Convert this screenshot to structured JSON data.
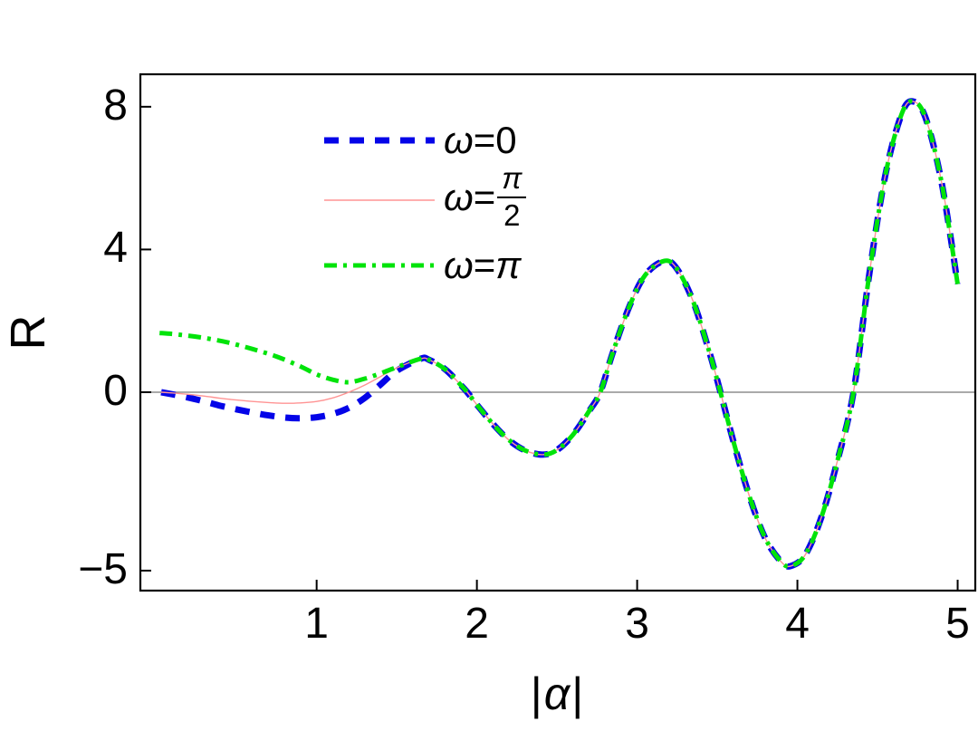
{
  "chart_data": {
    "type": "line",
    "title": "",
    "xlabel": "|α|",
    "xlabel_parts": {
      "left_bar": "|",
      "symbol": "α",
      "right_bar": "|"
    },
    "ylabel": "R",
    "xlim": [
      -0.1,
      5.11
    ],
    "ylim": [
      -5.56,
      8.91
    ],
    "x_ticks": [
      {
        "value": 1,
        "label": "1"
      },
      {
        "value": 2,
        "label": "2"
      },
      {
        "value": 3,
        "label": "3"
      },
      {
        "value": 4,
        "label": "4"
      },
      {
        "value": 5,
        "label": "5"
      }
    ],
    "y_ticks": [
      {
        "value": 8,
        "label": "8"
      },
      {
        "value": 4,
        "label": "4"
      },
      {
        "value": 0,
        "label": "0"
      },
      {
        "value": -5,
        "label": "−5"
      }
    ],
    "grid": "none",
    "zero_line": true,
    "zero_line_color": "#787878",
    "frame_color": "#000000",
    "background": "#ffffff",
    "legend_position": "top-left-inside",
    "series": [
      {
        "name": "ω=0",
        "color": "#0404e8",
        "style": "dashed",
        "stroke_width": 7,
        "dash": [
          16,
          12
        ],
        "points": [
          [
            0.03,
            0
          ],
          [
            0.1,
            -0.06
          ],
          [
            0.2,
            -0.15
          ],
          [
            0.3,
            -0.26
          ],
          [
            0.4,
            -0.38
          ],
          [
            0.5,
            -0.48
          ],
          [
            0.6,
            -0.57
          ],
          [
            0.7,
            -0.65
          ],
          [
            0.8,
            -0.71
          ],
          [
            0.9,
            -0.73
          ],
          [
            1,
            -0.7
          ],
          [
            1.1,
            -0.61
          ],
          [
            1.2,
            -0.44
          ],
          [
            1.3,
            -0.16
          ],
          [
            1.4,
            0.22
          ],
          [
            1.5,
            0.6
          ],
          [
            1.65,
            0.94
          ],
          [
            1.7,
            0.91
          ],
          [
            1.8,
            0.65
          ],
          [
            1.9,
            0.2
          ],
          [
            1.94,
            0
          ],
          [
            2,
            -0.35
          ],
          [
            2.1,
            -0.89
          ],
          [
            2.2,
            -1.34
          ],
          [
            2.3,
            -1.63
          ],
          [
            2.41,
            -1.75
          ],
          [
            2.5,
            -1.62
          ],
          [
            2.6,
            -1.19
          ],
          [
            2.7,
            -0.53
          ],
          [
            2.77,
            0
          ],
          [
            2.85,
            1.14
          ],
          [
            2.95,
            2.39
          ],
          [
            3.05,
            3.28
          ],
          [
            3.17,
            3.68
          ],
          [
            3.25,
            3.45
          ],
          [
            3.35,
            2.54
          ],
          [
            3.45,
            1.14
          ],
          [
            3.52,
            0
          ],
          [
            3.6,
            -1.37
          ],
          [
            3.7,
            -2.91
          ],
          [
            3.8,
            -4.1
          ],
          [
            3.9,
            -4.76
          ],
          [
            3.96,
            -4.87
          ],
          [
            4.05,
            -4.55
          ],
          [
            4.15,
            -3.5
          ],
          [
            4.25,
            -1.92
          ],
          [
            4.35,
            0
          ],
          [
            4.45,
            3.35
          ],
          [
            4.55,
            6.11
          ],
          [
            4.65,
            7.79
          ],
          [
            4.72,
            8.15
          ],
          [
            4.8,
            7.69
          ],
          [
            4.9,
            5.88
          ],
          [
            5,
            3.03
          ]
        ]
      },
      {
        "name": "ω=π/2",
        "color": "#ff9494",
        "style": "solid",
        "stroke_width": 1.4,
        "dash": [],
        "points": [
          [
            0.03,
            0
          ],
          [
            0.1,
            -0.02
          ],
          [
            0.2,
            -0.06
          ],
          [
            0.3,
            -0.11
          ],
          [
            0.4,
            -0.17
          ],
          [
            0.5,
            -0.22
          ],
          [
            0.6,
            -0.26
          ],
          [
            0.7,
            -0.29
          ],
          [
            0.8,
            -0.31
          ],
          [
            0.9,
            -0.3
          ],
          [
            1,
            -0.26
          ],
          [
            1.1,
            -0.16
          ],
          [
            1.2,
            0
          ],
          [
            1.3,
            0.2
          ],
          [
            1.4,
            0.44
          ],
          [
            1.5,
            0.68
          ],
          [
            1.65,
            0.94
          ],
          [
            1.7,
            0.91
          ],
          [
            1.8,
            0.65
          ],
          [
            1.9,
            0.2
          ],
          [
            1.94,
            0
          ],
          [
            2,
            -0.35
          ],
          [
            2.1,
            -0.89
          ],
          [
            2.2,
            -1.34
          ],
          [
            2.3,
            -1.63
          ],
          [
            2.41,
            -1.75
          ],
          [
            2.5,
            -1.62
          ],
          [
            2.6,
            -1.19
          ],
          [
            2.7,
            -0.53
          ],
          [
            2.77,
            0
          ],
          [
            2.85,
            1.14
          ],
          [
            2.95,
            2.39
          ],
          [
            3.05,
            3.28
          ],
          [
            3.17,
            3.68
          ],
          [
            3.25,
            3.45
          ],
          [
            3.35,
            2.54
          ],
          [
            3.45,
            1.14
          ],
          [
            3.52,
            0
          ],
          [
            3.6,
            -1.37
          ],
          [
            3.7,
            -2.91
          ],
          [
            3.8,
            -4.1
          ],
          [
            3.9,
            -4.76
          ],
          [
            3.96,
            -4.87
          ],
          [
            4.05,
            -4.55
          ],
          [
            4.15,
            -3.5
          ],
          [
            4.25,
            -1.92
          ],
          [
            4.35,
            0
          ],
          [
            4.45,
            3.35
          ],
          [
            4.55,
            6.11
          ],
          [
            4.65,
            7.79
          ],
          [
            4.72,
            8.15
          ],
          [
            4.8,
            7.69
          ],
          [
            4.9,
            5.88
          ],
          [
            5,
            3.03
          ]
        ]
      },
      {
        "name": "ω=π",
        "color": "#00e30a",
        "style": "dash-dot",
        "stroke_width": 5,
        "dash": [
          14,
          7,
          4,
          7
        ],
        "points": [
          [
            0.02,
            1.66
          ],
          [
            0.15,
            1.61
          ],
          [
            0.3,
            1.52
          ],
          [
            0.45,
            1.39
          ],
          [
            0.6,
            1.21
          ],
          [
            0.75,
            1
          ],
          [
            0.9,
            0.72
          ],
          [
            1,
            0.5
          ],
          [
            1.1,
            0.35
          ],
          [
            1.2,
            0.28
          ],
          [
            1.3,
            0.38
          ],
          [
            1.4,
            0.53
          ],
          [
            1.5,
            0.7
          ],
          [
            1.65,
            0.94
          ],
          [
            1.7,
            0.91
          ],
          [
            1.8,
            0.65
          ],
          [
            1.9,
            0.2
          ],
          [
            1.94,
            0
          ],
          [
            2,
            -0.35
          ],
          [
            2.1,
            -0.89
          ],
          [
            2.2,
            -1.34
          ],
          [
            2.3,
            -1.63
          ],
          [
            2.41,
            -1.75
          ],
          [
            2.5,
            -1.62
          ],
          [
            2.6,
            -1.19
          ],
          [
            2.7,
            -0.53
          ],
          [
            2.77,
            0
          ],
          [
            2.85,
            1.14
          ],
          [
            2.95,
            2.39
          ],
          [
            3.05,
            3.28
          ],
          [
            3.17,
            3.68
          ],
          [
            3.25,
            3.45
          ],
          [
            3.35,
            2.54
          ],
          [
            3.45,
            1.14
          ],
          [
            3.52,
            0
          ],
          [
            3.6,
            -1.37
          ],
          [
            3.7,
            -2.91
          ],
          [
            3.8,
            -4.1
          ],
          [
            3.9,
            -4.76
          ],
          [
            3.96,
            -4.87
          ],
          [
            4.05,
            -4.55
          ],
          [
            4.15,
            -3.5
          ],
          [
            4.25,
            -1.92
          ],
          [
            4.35,
            0
          ],
          [
            4.45,
            3.35
          ],
          [
            4.55,
            6.11
          ],
          [
            4.65,
            7.79
          ],
          [
            4.72,
            8.15
          ],
          [
            4.8,
            7.69
          ],
          [
            4.9,
            5.88
          ],
          [
            5,
            3.03
          ]
        ]
      }
    ]
  },
  "legend": {
    "items": [
      {
        "omega": "ω",
        "eq": "=",
        "value": "0",
        "marker": "blue-dashed-line"
      },
      {
        "omega": "ω",
        "eq": "=",
        "frac_num": "π",
        "frac_den": "2",
        "marker": "pink-solid-line"
      },
      {
        "omega": "ω",
        "eq": "=",
        "value": "π",
        "marker": "green-dashdot-line"
      }
    ]
  }
}
